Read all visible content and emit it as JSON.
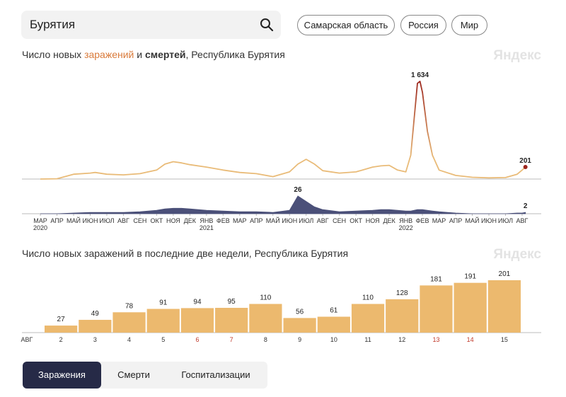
{
  "search": {
    "query": "Бурятия"
  },
  "regions": [
    "Самарская область",
    "Россия",
    "Мир"
  ],
  "watermark": "Яндекс",
  "tabs": [
    "Заражения",
    "Смерти",
    "Госпитализации"
  ],
  "chart_data": [
    {
      "type": "line",
      "title_parts": [
        "Число новых ",
        "заражений",
        " и ",
        "смертей",
        ", Республика Бурятия"
      ],
      "x": [
        0,
        1,
        2,
        3,
        3.3,
        4,
        5,
        6,
        7,
        7.5,
        8,
        8.5,
        9,
        10,
        11,
        12,
        13,
        14,
        15,
        15.5,
        16,
        16.5,
        17,
        18,
        19,
        20,
        20.5,
        21,
        21.5,
        22,
        22.3,
        22.5,
        22.7,
        22.85,
        23,
        23.3,
        23.6,
        24,
        25,
        26,
        27,
        28,
        28.7,
        29,
        29.2
      ],
      "xlim": [
        -0.3,
        29.3
      ],
      "xticks": [
        {
          "value": 0,
          "label": "МАР"
        },
        {
          "value": 1,
          "label": "АПР"
        },
        {
          "value": 2,
          "label": "МАЙ"
        },
        {
          "value": 3,
          "label": "ИЮН"
        },
        {
          "value": 4,
          "label": "ИЮЛ"
        },
        {
          "value": 5,
          "label": "АВГ"
        },
        {
          "value": 6,
          "label": "СЕН"
        },
        {
          "value": 7,
          "label": "ОКТ"
        },
        {
          "value": 8,
          "label": "НОЯ"
        },
        {
          "value": 9,
          "label": "ДЕК"
        },
        {
          "value": 10,
          "label": "ЯНВ"
        },
        {
          "value": 11,
          "label": "ФЕВ"
        },
        {
          "value": 12,
          "label": "МАР"
        },
        {
          "value": 13,
          "label": "АПР"
        },
        {
          "value": 14,
          "label": "МАЙ"
        },
        {
          "value": 15,
          "label": "ИЮН"
        },
        {
          "value": 16,
          "label": "ИЮЛ"
        },
        {
          "value": 17,
          "label": "АВГ"
        },
        {
          "value": 18,
          "label": "СЕН"
        },
        {
          "value": 19,
          "label": "ОКТ"
        },
        {
          "value": 20,
          "label": "НОЯ"
        },
        {
          "value": 21,
          "label": "ДЕК"
        },
        {
          "value": 22,
          "label": "ЯНВ"
        },
        {
          "value": 23,
          "label": "ФЕВ"
        },
        {
          "value": 24,
          "label": "МАР"
        },
        {
          "value": 25,
          "label": "АПР"
        },
        {
          "value": 26,
          "label": "МАЙ"
        },
        {
          "value": 27,
          "label": "ИЮН"
        },
        {
          "value": 28,
          "label": "ИЮЛ"
        },
        {
          "value": 29,
          "label": "АВГ"
        }
      ],
      "year_ticks": [
        {
          "value": 0,
          "label": "2020"
        },
        {
          "value": 10,
          "label": "2021"
        },
        {
          "value": 22,
          "label": "2022"
        }
      ],
      "ylim": [
        0,
        1700
      ],
      "y2lim": [
        0,
        30
      ],
      "series": [
        {
          "name": "заражений",
          "color": "#e9bb78",
          "peak_color": "#9b241c",
          "values": [
            0,
            5,
            80,
            100,
            110,
            80,
            70,
            90,
            150,
            250,
            290,
            270,
            240,
            200,
            150,
            110,
            90,
            40,
            120,
            250,
            330,
            250,
            140,
            100,
            120,
            200,
            220,
            230,
            150,
            120,
            400,
            1000,
            1600,
            1634,
            1450,
            800,
            400,
            150,
            60,
            30,
            20,
            25,
            80,
            150,
            201
          ],
          "value_labels": [
            null,
            null,
            null,
            null,
            null,
            null,
            null,
            null,
            null,
            null,
            null,
            null,
            null,
            null,
            null,
            null,
            null,
            null,
            null,
            null,
            null,
            null,
            null,
            null,
            null,
            null,
            null,
            null,
            null,
            null,
            null,
            null,
            null,
            "1 634",
            null,
            null,
            null,
            null,
            null,
            null,
            null,
            null,
            null,
            null,
            "201"
          ]
        },
        {
          "name": "смертей",
          "color": "#4b5079",
          "axis": "y2",
          "values": [
            0,
            0,
            1,
            2,
            2,
            2,
            2,
            3,
            5,
            7,
            8,
            8,
            7,
            5,
            4,
            3,
            3,
            2,
            5,
            26,
            18,
            10,
            6,
            3,
            4,
            5,
            6,
            6,
            5,
            4,
            4,
            5,
            6,
            6,
            6,
            5,
            4,
            3,
            1,
            0,
            0,
            0,
            1,
            1,
            2
          ],
          "value_labels": [
            null,
            null,
            null,
            null,
            null,
            null,
            null,
            null,
            null,
            null,
            null,
            null,
            null,
            null,
            null,
            null,
            null,
            null,
            null,
            "26",
            null,
            null,
            null,
            null,
            null,
            null,
            null,
            null,
            null,
            null,
            null,
            null,
            null,
            null,
            null,
            null,
            null,
            null,
            null,
            null,
            null,
            null,
            null,
            null,
            "2"
          ]
        }
      ]
    },
    {
      "type": "bar",
      "title": "Число новых заражений в последние две недели, Республика Бурятия",
      "month_label": "АВГ",
      "categories": [
        "2",
        "3",
        "4",
        "5",
        "6",
        "7",
        "8",
        "9",
        "10",
        "11",
        "12",
        "13",
        "14",
        "15"
      ],
      "category_colors": [
        "#333",
        "#333",
        "#333",
        "#333",
        "#c0392b",
        "#c0392b",
        "#333",
        "#333",
        "#333",
        "#333",
        "#333",
        "#c0392b",
        "#c0392b",
        "#333"
      ],
      "values": [
        27,
        49,
        78,
        91,
        94,
        95,
        110,
        56,
        61,
        110,
        128,
        181,
        191,
        201
      ],
      "color": "#ecb96e",
      "ylim": [
        0,
        220
      ]
    }
  ]
}
